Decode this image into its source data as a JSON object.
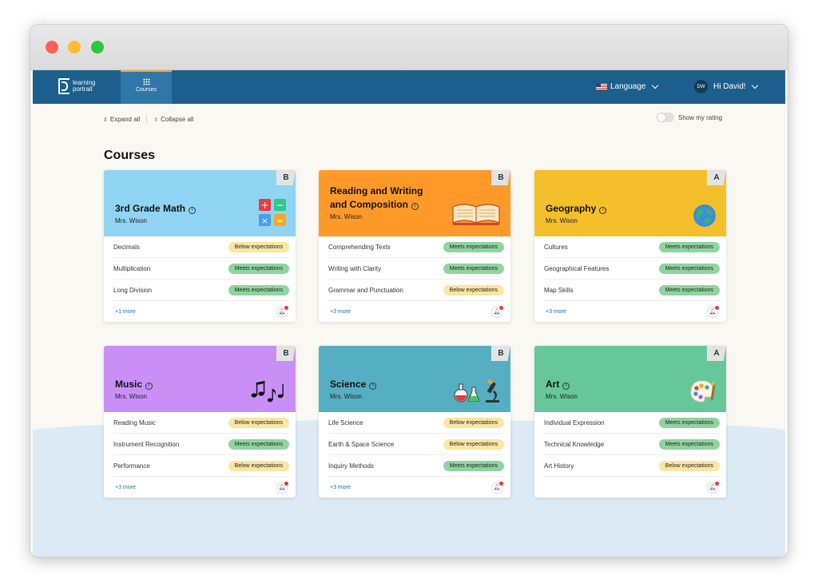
{
  "nav": {
    "logo_line1": "learning",
    "logo_line2": "portrait",
    "tab_label": "Courses",
    "language_label": "Language",
    "user_initials": "DW",
    "user_greeting": "Hi David!"
  },
  "toolbar": {
    "expand_label": "Expand all",
    "collapse_label": "Collapse all",
    "rating_label": "Show my rating"
  },
  "page_title": "Courses",
  "colors": {
    "nav": "#1c5f8d",
    "math": "#8fd5f3",
    "reading": "#ff9a2a",
    "geography": "#f5bf2b",
    "music": "#c98ff7",
    "science": "#56aec3",
    "art": "#66c79a"
  },
  "cards": [
    {
      "title_line1": "3rd Grade Math",
      "title_line2": "",
      "teacher": "Mrs. Wison",
      "grade": "B",
      "icon": "math-symbols-icon",
      "skills": [
        {
          "name": "Decimals",
          "status": "Below expectations"
        },
        {
          "name": "Multiplication",
          "status": "Meets expectations"
        },
        {
          "name": "Long Division",
          "status": "Meets expectations"
        }
      ],
      "more": "+1 more"
    },
    {
      "title_line1": "Reading and Writing",
      "title_line2": "and Composition",
      "teacher": "Mrs. Wison",
      "grade": "B",
      "icon": "open-book-icon",
      "skills": [
        {
          "name": "Comprehending Texts",
          "status": "Meets expectations"
        },
        {
          "name": "Writing with Clarity",
          "status": "Meets expectations"
        },
        {
          "name": "Grammar and Punctuation",
          "status": "Below expectations"
        }
      ],
      "more": "+3 more"
    },
    {
      "title_line1": "Geography",
      "title_line2": "",
      "teacher": "Mrs. Wison",
      "grade": "A",
      "icon": "globe-icon",
      "skills": [
        {
          "name": "Cultures",
          "status": "Meets expectations"
        },
        {
          "name": "Geographical Features",
          "status": "Meets expectations"
        },
        {
          "name": "Map Skills",
          "status": "Meets expectations"
        }
      ],
      "more": "+3 more"
    },
    {
      "title_line1": "Music",
      "title_line2": "",
      "teacher": "Mrs. Wison",
      "grade": "B",
      "icon": "music-notes-icon",
      "skills": [
        {
          "name": "Reading Music",
          "status": "Below expectations"
        },
        {
          "name": "Instrument Recognition",
          "status": "Meets expectations"
        },
        {
          "name": "Performance",
          "status": "Below expectations"
        }
      ],
      "more": "+3 more"
    },
    {
      "title_line1": "Science",
      "title_line2": "",
      "teacher": "Mrs. Wison",
      "grade": "B",
      "icon": "lab-flasks-microscope-icon",
      "skills": [
        {
          "name": "Life Science",
          "status": "Below expectations"
        },
        {
          "name": "Earth & Space Science",
          "status": "Below expectations"
        },
        {
          "name": "Inquiry Methods",
          "status": "Meets expectations"
        }
      ],
      "more": "+3 more"
    },
    {
      "title_line1": "Art",
      "title_line2": "",
      "teacher": "Mrs. Wison",
      "grade": "A",
      "icon": "paint-palette-icon",
      "skills": [
        {
          "name": "Individual Expression",
          "status": "Meets expectations"
        },
        {
          "name": "Technical Knowledge",
          "status": "Meets expectations"
        },
        {
          "name": "Art History",
          "status": "Below expectations"
        }
      ],
      "more": ""
    }
  ]
}
